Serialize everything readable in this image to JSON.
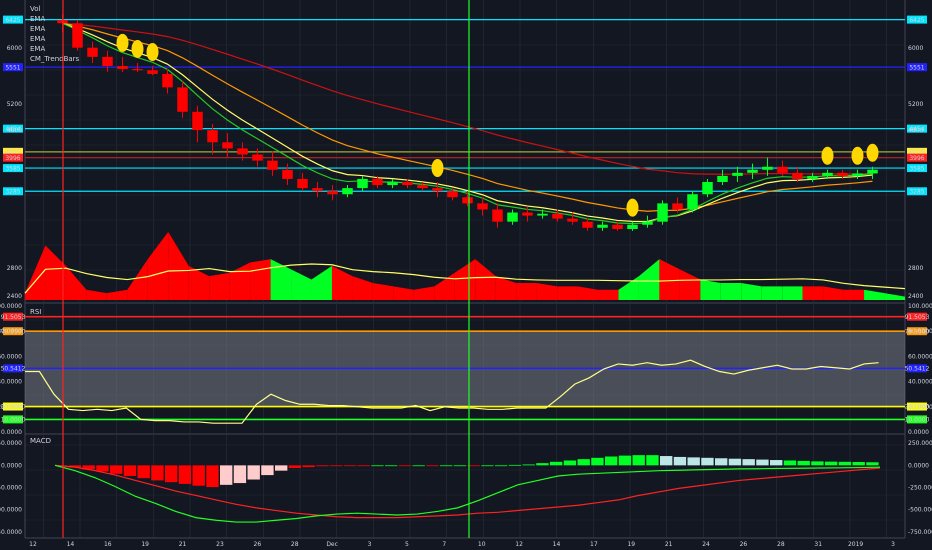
{
  "colors": {
    "bg": "#131722",
    "grid": "#2a2e39",
    "up": "#00ff22",
    "down": "#ff0000",
    "cyan": "#00e5ff",
    "blue": "#2222ff",
    "ema_red": "#cc1111",
    "ema_orange": "#ff9800",
    "ema_yellow": "#ffff66",
    "ema_green": "#22cc22",
    "rsi_line": "#ffff88",
    "rsi_band": "#787b86",
    "macd_line": "#ff2222",
    "signal_line": "#22ff22",
    "hist_pos": "#00ff22",
    "hist_pos_weak": "#bde6e6",
    "hist_neg": "#ff0000",
    "hist_neg_weak": "#ffcccc",
    "marker": "#ffd700",
    "vline_red": "#ff2222",
    "vline_green": "#22ff22"
  },
  "legend": [
    "Vol",
    "EMA",
    "EMA",
    "EMA",
    "EMA",
    "CM_TrendBars"
  ],
  "price_axis": [
    "6000",
    "5200",
    "4800",
    "2800",
    "2400"
  ],
  "price_hlines": [
    {
      "value": "6425",
      "color": "cyan",
      "yr": 0.05
    },
    {
      "value": "5551",
      "color": "blue",
      "yr": 0.255
    },
    {
      "value": "4454",
      "color": "cyan",
      "yr": 0.52
    },
    {
      "value": "4015",
      "color": "yellow",
      "yr": 0.62
    },
    {
      "value": "3996",
      "color": "red",
      "yr": 0.645
    },
    {
      "value": "3585",
      "color": "cyan",
      "yr": 0.69
    },
    {
      "value": "3285",
      "color": "cyan",
      "yr": 0.79
    }
  ],
  "rsi": {
    "title": "RSI",
    "axis": [
      "100.0000",
      "80.0000",
      "60.0000",
      "40.0000",
      "20.0000",
      "0.0000"
    ],
    "levels": [
      {
        "label": "91.5053",
        "value": 91.5,
        "color": "red"
      },
      {
        "label": "79.9500",
        "value": 80,
        "color": "orange"
      },
      {
        "label": "50.5412",
        "value": 50.5,
        "color": "blue"
      },
      {
        "label": "20.2000",
        "value": 20.2,
        "color": "yellow"
      },
      {
        "label": "10.0000",
        "value": 10,
        "color": "green"
      }
    ],
    "values": [
      48,
      48,
      30,
      18,
      17,
      18,
      17,
      19,
      10,
      9,
      9,
      8,
      8,
      7,
      7,
      7,
      22,
      30,
      25,
      22,
      22,
      21,
      21,
      20,
      19,
      19,
      19,
      21,
      17,
      20,
      19,
      19,
      18,
      18,
      19,
      19,
      19,
      28,
      38,
      43,
      50,
      54,
      53,
      55,
      53,
      54,
      57,
      52,
      48,
      46,
      49,
      51,
      53,
      50,
      50,
      52,
      51,
      50,
      54,
      55
    ]
  },
  "macd": {
    "title": "MACD",
    "axis": [
      "250.0000",
      "0.0000",
      "-250.0000",
      "-500.0000",
      "-750.0000"
    ],
    "macd_line": [
      0,
      -20,
      -60,
      -110,
      -170,
      -230,
      -290,
      -340,
      -390,
      -440,
      -480,
      -510,
      -540,
      -560,
      -580,
      -590,
      -590,
      -590,
      -580,
      -570,
      -560,
      -540,
      -530,
      -510,
      -490,
      -470,
      -450,
      -420,
      -390,
      -340,
      -300,
      -260,
      -230,
      -200,
      -170,
      -150,
      -130,
      -110,
      -90,
      -70,
      -50,
      -30
    ],
    "signal_line": [
      0,
      -60,
      -140,
      -240,
      -350,
      -430,
      -520,
      -590,
      -620,
      -640,
      -640,
      -620,
      -600,
      -570,
      -550,
      -540,
      -550,
      -560,
      -550,
      -520,
      -480,
      -400,
      -310,
      -220,
      -170,
      -120,
      -100,
      -90,
      -80,
      -70,
      -60,
      -55,
      -50,
      -45,
      -40,
      -38,
      -35,
      -33,
      -30,
      -28,
      -25,
      -20
    ],
    "hist": [
      -5,
      -25,
      -45,
      -70,
      -95,
      -120,
      -145,
      -170,
      -190,
      -210,
      -230,
      -245,
      -220,
      -200,
      -160,
      -110,
      -60,
      -30,
      -20,
      -10,
      -5,
      -3,
      -2,
      0,
      0,
      -2,
      0,
      -1,
      0,
      0,
      -1,
      0,
      0,
      5,
      10,
      25,
      40,
      55,
      70,
      85,
      100,
      110,
      115,
      115,
      105,
      95,
      90,
      85,
      80,
      75,
      70,
      65,
      60,
      55,
      50,
      45,
      42,
      40,
      38,
      35
    ]
  },
  "x_axis": [
    "12",
    "14",
    "16",
    "19",
    "21",
    "23",
    "26",
    "28",
    "Dec",
    "3",
    "5",
    "7",
    "10",
    "12",
    "14",
    "17",
    "19",
    "21",
    "24",
    "26",
    "28",
    "31",
    "2019",
    "3"
  ],
  "candles": [
    [
      6500,
      6600,
      6300,
      6450
    ],
    [
      6450,
      6500,
      6000,
      6050
    ],
    [
      6050,
      6150,
      5800,
      5900
    ],
    [
      5900,
      6000,
      5650,
      5750
    ],
    [
      5750,
      5900,
      5650,
      5700
    ],
    [
      5700,
      5800,
      5650,
      5680
    ],
    [
      5680,
      5750,
      5600,
      5620
    ],
    [
      5620,
      5700,
      5300,
      5400
    ],
    [
      5400,
      5500,
      4900,
      5000
    ],
    [
      5000,
      5100,
      4500,
      4700
    ],
    [
      4700,
      4800,
      4300,
      4500
    ],
    [
      4500,
      4650,
      4250,
      4400
    ],
    [
      4400,
      4500,
      4200,
      4300
    ],
    [
      4300,
      4400,
      4100,
      4200
    ],
    [
      4200,
      4350,
      3950,
      4050
    ],
    [
      4050,
      4150,
      3800,
      3900
    ],
    [
      3900,
      4000,
      3700,
      3750
    ],
    [
      3750,
      3850,
      3600,
      3700
    ],
    [
      3700,
      3800,
      3550,
      3650
    ],
    [
      3650,
      3800,
      3600,
      3750
    ],
    [
      3750,
      3950,
      3700,
      3900
    ],
    [
      3900,
      3950,
      3750,
      3800
    ],
    [
      3800,
      3900,
      3750,
      3850
    ],
    [
      3850,
      3900,
      3750,
      3800
    ],
    [
      3800,
      3850,
      3700,
      3750
    ],
    [
      3750,
      3850,
      3600,
      3700
    ],
    [
      3700,
      3750,
      3550,
      3600
    ],
    [
      3600,
      3700,
      3450,
      3500
    ],
    [
      3500,
      3600,
      3300,
      3400
    ],
    [
      3400,
      3500,
      3100,
      3200
    ],
    [
      3200,
      3400,
      3150,
      3350
    ],
    [
      3350,
      3450,
      3200,
      3300
    ],
    [
      3300,
      3400,
      3250,
      3330
    ],
    [
      3330,
      3400,
      3200,
      3250
    ],
    [
      3250,
      3350,
      3150,
      3200
    ],
    [
      3200,
      3250,
      3050,
      3100
    ],
    [
      3100,
      3200,
      3050,
      3150
    ],
    [
      3150,
      3200,
      3050,
      3080
    ],
    [
      3080,
      3200,
      3050,
      3150
    ],
    [
      3150,
      3300,
      3100,
      3200
    ],
    [
      3200,
      3550,
      3150,
      3500
    ],
    [
      3500,
      3600,
      3350,
      3400
    ],
    [
      3400,
      3700,
      3350,
      3650
    ],
    [
      3650,
      3900,
      3600,
      3850
    ],
    [
      3850,
      4050,
      3800,
      3950
    ],
    [
      3950,
      4100,
      3850,
      4000
    ],
    [
      4000,
      4150,
      3900,
      4050
    ],
    [
      4050,
      4250,
      3950,
      4100
    ],
    [
      4100,
      4200,
      3950,
      4000
    ],
    [
      4000,
      4100,
      3850,
      3900
    ],
    [
      3900,
      4000,
      3850,
      3950
    ],
    [
      3950,
      4050,
      3900,
      4000
    ],
    [
      4000,
      4050,
      3900,
      3950
    ],
    [
      3950,
      4050,
      3900,
      3990
    ],
    [
      3990,
      4100,
      3900,
      4050
    ]
  ],
  "volume": [
    2500,
    3200,
    2900,
    2550,
    2500,
    2550,
    3000,
    3400,
    2900,
    2750,
    2800,
    2950,
    3000,
    2850,
    2700,
    2900,
    2750,
    2650,
    2600,
    2550,
    2600,
    2800,
    3000,
    2750,
    2650,
    2650,
    2600,
    2600,
    2550,
    2550,
    2750,
    3000,
    2850,
    2700,
    2650,
    2650,
    2600,
    2600,
    2600,
    2600,
    2550,
    2550,
    2500,
    2450
  ],
  "markers": [
    {
      "i": 3,
      "pos": "above"
    },
    {
      "i": 4,
      "pos": "above"
    },
    {
      "i": 5,
      "pos": "above"
    },
    {
      "i": 20,
      "pos": "above"
    },
    {
      "i": 30,
      "pos": "above"
    },
    {
      "i": 41,
      "pos": "above"
    },
    {
      "i": 42,
      "pos": "above"
    },
    {
      "i": 43,
      "pos": "above"
    }
  ]
}
